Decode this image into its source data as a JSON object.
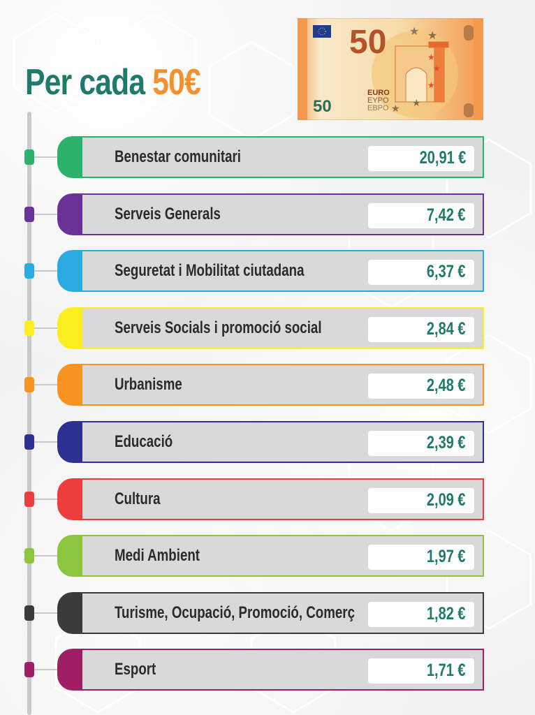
{
  "title": {
    "prefix": "Per cada",
    "amount": "50€"
  },
  "banknote": {
    "denomination": "50",
    "small_denomination": "50",
    "script_lines": [
      "EURO",
      "EYPO",
      "EBPO"
    ]
  },
  "items": [
    {
      "label": "Benestar comunitari",
      "value": "20,91 €",
      "color": "#2bb36b"
    },
    {
      "label": "Serveis Generals",
      "value": "7,42 €",
      "color": "#6a3296"
    },
    {
      "label": "Seguretat i Mobilitat ciutadana",
      "value": "6,37 €",
      "color": "#29abe2"
    },
    {
      "label": "Serveis Socials i promoció social",
      "value": "2,84 €",
      "color": "#fcee21"
    },
    {
      "label": "Urbanisme",
      "value": "2,48 €",
      "color": "#f7931e"
    },
    {
      "label": "Educació",
      "value": "2,39 €",
      "color": "#2e3192"
    },
    {
      "label": "Cultura",
      "value": "2,09 €",
      "color": "#ed3d3d"
    },
    {
      "label": "Medi Ambient",
      "value": "1,97 €",
      "color": "#8cc63f"
    },
    {
      "label": "Turisme, Ocupació, Promoció, Comerç",
      "value": "1,82 €",
      "color": "#3b3b3b"
    },
    {
      "label": "Esport",
      "value": "1,71 €",
      "color": "#9e1f63"
    }
  ]
}
